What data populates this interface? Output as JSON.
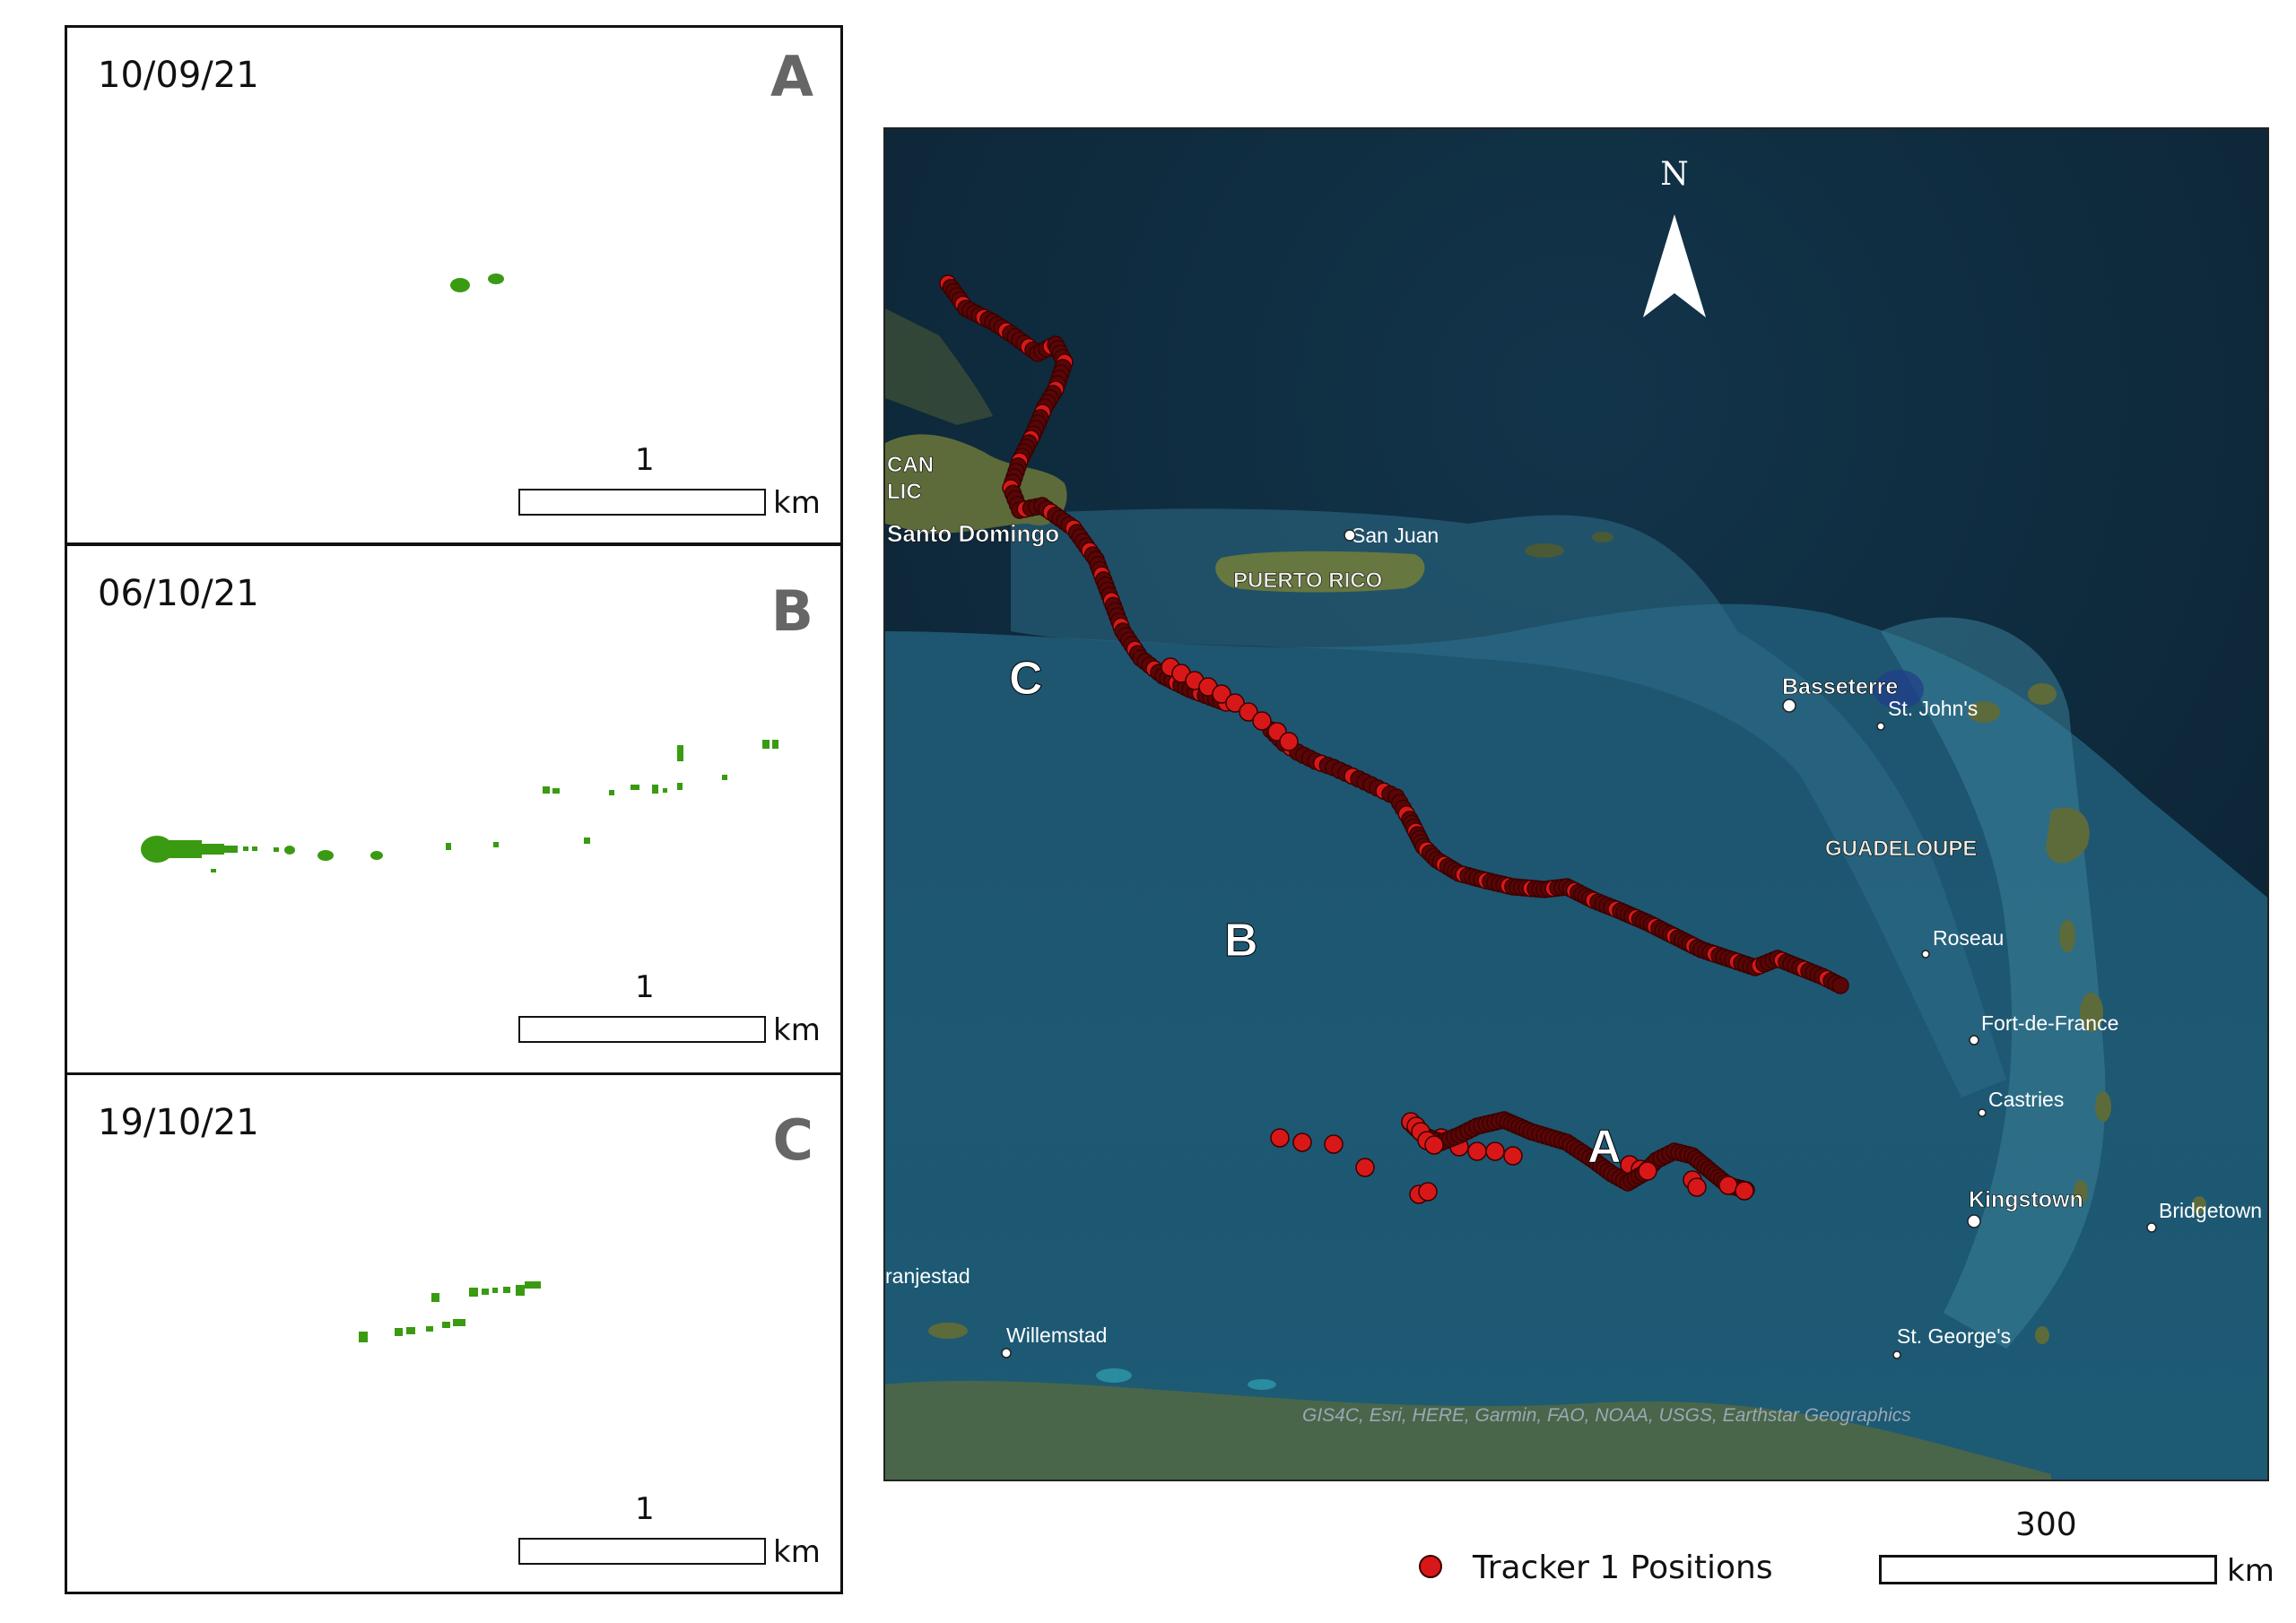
{
  "panels": [
    {
      "date": "10/09/21",
      "letter": "A",
      "scale_value": "1",
      "scale_unit": "km"
    },
    {
      "date": "06/10/21",
      "letter": "B",
      "scale_value": "1",
      "scale_unit": "km"
    },
    {
      "date": "19/10/21",
      "letter": "C",
      "scale_value": "1",
      "scale_unit": "km"
    }
  ],
  "map": {
    "place_labels": {
      "dominican_1": "CAN",
      "dominican_2": "LIC",
      "santo_domingo": "Santo Domingo",
      "san_juan": "San Juan",
      "puerto_rico": "PUERTO RICO",
      "basseterre": "Basseterre",
      "st_johns": "St. John's",
      "guadeloupe": "GUADELOUPE",
      "roseau": "Roseau",
      "fort_de_france": "Fort-de-France",
      "castries": "Castries",
      "kingstown": "Kingstown",
      "bridgetown": "Bridgetown",
      "oranjestad": "ranjestad",
      "willemstad": "Willemstad",
      "st_georges": "St. George's"
    },
    "track_markers": {
      "a": "A",
      "b": "B",
      "c": "C"
    },
    "north_label": "N",
    "attribution": "GIS4C, Esri, HERE, Garmin, FAO, NOAA, USGS, Earthstar Geographics",
    "colors": {
      "ocean_deep": "#0f2f45",
      "ocean_shelf": "#2b6a86",
      "land": "#5d6b3a",
      "track": "#d81818",
      "track_edge": "#3a0000"
    }
  },
  "legend": {
    "label": "Tracker 1 Positions",
    "color": "#d81818"
  },
  "map_scale": {
    "value": "300",
    "unit": "km"
  },
  "sargassum_color": "#3a9a12"
}
